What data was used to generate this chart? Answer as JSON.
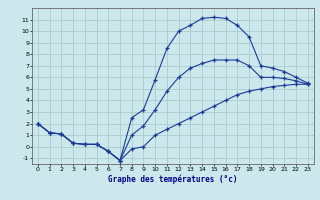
{
  "xlabel": "Graphe des températures (°c)",
  "bg_color": "#cce8ec",
  "grid_color": "#aacccc",
  "line_color": "#1a3a9c",
  "hours": [
    0,
    1,
    2,
    3,
    4,
    5,
    6,
    7,
    8,
    9,
    10,
    11,
    12,
    13,
    14,
    15,
    16,
    17,
    18,
    19,
    20,
    21,
    22,
    23
  ],
  "curve_max": [
    2.0,
    1.2,
    1.1,
    0.3,
    0.2,
    0.2,
    -0.4,
    -1.2,
    2.5,
    3.2,
    5.8,
    8.5,
    10.0,
    10.5,
    11.1,
    11.2,
    11.1,
    10.5,
    9.5,
    7.0,
    6.8,
    6.5,
    6.0,
    5.5
  ],
  "curve_min": [
    2.0,
    1.2,
    1.1,
    0.3,
    0.2,
    0.2,
    -0.4,
    -1.2,
    -0.2,
    0.0,
    1.0,
    1.5,
    2.0,
    2.5,
    3.0,
    3.5,
    4.0,
    4.5,
    4.8,
    5.0,
    5.2,
    5.3,
    5.4,
    5.4
  ],
  "curve_mean": [
    2.0,
    1.2,
    1.1,
    0.3,
    0.2,
    0.2,
    -0.4,
    -1.2,
    1.0,
    1.8,
    3.2,
    4.8,
    6.0,
    6.8,
    7.2,
    7.5,
    7.5,
    7.5,
    7.0,
    6.0,
    6.0,
    5.9,
    5.7,
    5.4
  ],
  "ylim": [
    -1.5,
    12.0
  ],
  "xlim": [
    -0.5,
    23.5
  ],
  "yticks": [
    -1,
    0,
    1,
    2,
    3,
    4,
    5,
    6,
    7,
    8,
    9,
    10,
    11
  ],
  "xticks": [
    0,
    1,
    2,
    3,
    4,
    5,
    6,
    7,
    8,
    9,
    10,
    11,
    12,
    13,
    14,
    15,
    16,
    17,
    18,
    19,
    20,
    21,
    22,
    23
  ]
}
